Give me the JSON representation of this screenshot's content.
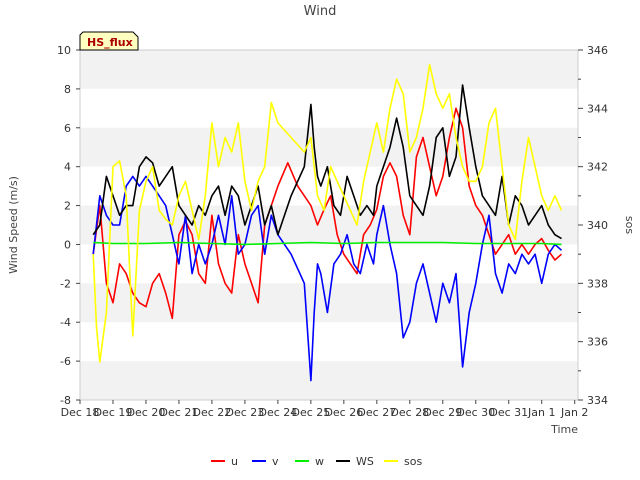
{
  "chart_data": {
    "type": "line",
    "title": "Wind",
    "xlabel": "Time",
    "ylabel": "Wind Speed (m/s)",
    "y2label": "sos",
    "annotation": "HS_flux",
    "xlim": [
      0,
      15.1
    ],
    "ylim": [
      -8,
      10
    ],
    "y2lim": [
      334,
      346
    ],
    "x_ticks": [
      "Dec 18",
      "Dec 19",
      "Dec 20",
      "Dec 21",
      "Dec 22",
      "Dec 23",
      "Dec 24",
      "Dec 25",
      "Dec 26",
      "Dec 27",
      "Dec 28",
      "Dec 29",
      "Dec 30",
      "Dec 31",
      "Jan 1",
      "Jan 2"
    ],
    "y_ticks": [
      -8,
      -6,
      -4,
      -2,
      0,
      2,
      4,
      6,
      8,
      10
    ],
    "y2_ticks": [
      334,
      336,
      338,
      340,
      342,
      344,
      346
    ],
    "grid_bands": true,
    "legend_position": "bottom",
    "x_unit": "days since Dec 18",
    "series": [
      {
        "name": "u",
        "color": "#ff0000",
        "axis": "left",
        "x": [
          0.4,
          0.6,
          0.8,
          1.0,
          1.2,
          1.4,
          1.6,
          1.8,
          2.0,
          2.2,
          2.4,
          2.6,
          2.8,
          3.0,
          3.2,
          3.4,
          3.6,
          3.8,
          4.0,
          4.2,
          4.4,
          4.6,
          4.8,
          5.0,
          5.2,
          5.4,
          5.6,
          5.8,
          6.0,
          6.3,
          6.6,
          7.0,
          7.2,
          7.4,
          7.6,
          7.8,
          8.0,
          8.2,
          8.4,
          8.6,
          8.8,
          9.0,
          9.2,
          9.4,
          9.6,
          9.8,
          10.0,
          10.2,
          10.4,
          10.6,
          10.8,
          11.0,
          11.2,
          11.4,
          11.6,
          11.8,
          12.0,
          12.2,
          12.4,
          12.6,
          12.8,
          13.0,
          13.2,
          13.4,
          13.6,
          13.8,
          14.0,
          14.2,
          14.4,
          14.6
        ],
        "y": [
          -0.5,
          2.0,
          -2.0,
          -3.0,
          -1.0,
          -1.5,
          -2.5,
          -3.0,
          -3.2,
          -2.0,
          -1.5,
          -2.5,
          -3.8,
          0.5,
          1.2,
          0.5,
          -1.5,
          -2.0,
          1.5,
          -1.0,
          -2.0,
          -2.5,
          0.5,
          -1.0,
          -2.0,
          -3.0,
          1.0,
          2.0,
          3.0,
          4.2,
          3.0,
          2.0,
          1.0,
          1.8,
          2.5,
          0.5,
          -0.5,
          -1.0,
          -1.5,
          0.5,
          1.0,
          1.8,
          3.5,
          4.2,
          3.5,
          1.5,
          0.5,
          4.5,
          5.5,
          4.0,
          2.5,
          3.5,
          5.5,
          7.0,
          6.0,
          3.0,
          2.0,
          1.5,
          0.5,
          -0.5,
          0.0,
          0.5,
          -0.5,
          0.0,
          -0.5,
          0.0,
          0.3,
          -0.3,
          -0.8,
          -0.5
        ]
      },
      {
        "name": "v",
        "color": "#0000ff",
        "axis": "left",
        "x": [
          0.4,
          0.6,
          0.8,
          1.0,
          1.2,
          1.4,
          1.6,
          1.8,
          2.0,
          2.2,
          2.4,
          2.6,
          2.8,
          3.0,
          3.2,
          3.4,
          3.6,
          3.8,
          4.0,
          4.2,
          4.4,
          4.6,
          4.8,
          5.0,
          5.2,
          5.4,
          5.6,
          5.8,
          6.0,
          6.4,
          6.8,
          7.0,
          7.1,
          7.2,
          7.3,
          7.5,
          7.7,
          7.9,
          8.1,
          8.3,
          8.5,
          8.7,
          8.9,
          9.0,
          9.2,
          9.4,
          9.6,
          9.8,
          10.0,
          10.2,
          10.4,
          10.6,
          10.8,
          11.0,
          11.2,
          11.4,
          11.6,
          11.8,
          12.0,
          12.2,
          12.4,
          12.6,
          12.8,
          13.0,
          13.2,
          13.4,
          13.6,
          13.8,
          14.0,
          14.2,
          14.4,
          14.6
        ],
        "y": [
          -0.5,
          2.5,
          1.5,
          1.0,
          1.0,
          3.0,
          3.5,
          3.0,
          3.5,
          3.0,
          2.5,
          2.0,
          0.5,
          -1.0,
          1.5,
          -1.5,
          0.0,
          -1.0,
          0.0,
          1.5,
          0.0,
          2.5,
          -0.5,
          0.0,
          1.5,
          2.0,
          -0.5,
          1.5,
          0.5,
          -0.5,
          -2.0,
          -7.0,
          -3.5,
          -1.0,
          -1.5,
          -3.5,
          -1.0,
          -0.5,
          0.5,
          -1.0,
          -1.5,
          0.0,
          -1.0,
          0.5,
          2.0,
          0.0,
          -1.5,
          -4.8,
          -4.0,
          -2.0,
          -1.0,
          -2.5,
          -4.0,
          -2.0,
          -3.0,
          -1.5,
          -6.3,
          -3.5,
          -2.0,
          0.0,
          1.5,
          -1.5,
          -2.5,
          -1.0,
          -1.5,
          -0.5,
          -1.0,
          -0.5,
          -2.0,
          -0.5,
          0.0,
          -0.3
        ]
      },
      {
        "name": "w",
        "color": "#00ee00",
        "axis": "left",
        "x": [
          0.4,
          1.0,
          2.0,
          3.0,
          4.0,
          5.0,
          6.0,
          7.0,
          8.0,
          9.0,
          10.0,
          11.0,
          12.0,
          13.0,
          14.0,
          14.6
        ],
        "y": [
          0.1,
          0.05,
          0.05,
          0.1,
          0.05,
          0.0,
          0.05,
          0.1,
          0.05,
          0.1,
          0.1,
          0.1,
          0.05,
          0.05,
          0.05,
          0.0
        ]
      },
      {
        "name": "WS",
        "color": "#000000",
        "axis": "left",
        "x": [
          0.4,
          0.6,
          0.8,
          1.0,
          1.2,
          1.4,
          1.6,
          1.8,
          2.0,
          2.2,
          2.4,
          2.6,
          2.8,
          3.0,
          3.2,
          3.4,
          3.6,
          3.8,
          4.0,
          4.2,
          4.4,
          4.6,
          4.8,
          5.0,
          5.2,
          5.4,
          5.6,
          5.8,
          6.0,
          6.4,
          6.8,
          7.0,
          7.1,
          7.2,
          7.3,
          7.5,
          7.7,
          7.9,
          8.1,
          8.3,
          8.5,
          8.7,
          8.9,
          9.0,
          9.2,
          9.4,
          9.6,
          9.8,
          10.0,
          10.2,
          10.4,
          10.6,
          10.8,
          11.0,
          11.2,
          11.4,
          11.6,
          11.8,
          12.0,
          12.2,
          12.4,
          12.6,
          12.8,
          13.0,
          13.2,
          13.4,
          13.6,
          13.8,
          14.0,
          14.2,
          14.4,
          14.6
        ],
        "y": [
          0.5,
          1.0,
          3.5,
          2.5,
          1.5,
          2.0,
          2.0,
          4.0,
          4.5,
          4.2,
          3.0,
          3.5,
          4.0,
          2.0,
          1.5,
          1.0,
          2.0,
          1.5,
          2.5,
          3.0,
          1.5,
          3.0,
          2.5,
          1.0,
          2.0,
          3.0,
          1.0,
          2.0,
          0.5,
          2.5,
          4.0,
          7.2,
          5.0,
          3.5,
          3.0,
          4.0,
          2.0,
          1.5,
          3.5,
          2.5,
          1.5,
          2.0,
          1.5,
          3.0,
          4.0,
          5.0,
          6.5,
          5.0,
          2.5,
          2.0,
          1.5,
          3.0,
          5.5,
          6.0,
          3.5,
          4.5,
          8.2,
          6.0,
          4.0,
          2.5,
          2.0,
          1.5,
          3.5,
          1.0,
          2.5,
          2.0,
          1.0,
          1.5,
          2.0,
          1.0,
          0.5,
          0.3
        ]
      },
      {
        "name": "sos",
        "color": "#ffff00",
        "axis": "right",
        "x": [
          0.4,
          0.5,
          0.6,
          0.8,
          1.0,
          1.2,
          1.4,
          1.6,
          1.8,
          2.0,
          2.2,
          2.4,
          2.6,
          2.8,
          3.0,
          3.2,
          3.4,
          3.6,
          3.8,
          4.0,
          4.2,
          4.4,
          4.6,
          4.8,
          5.0,
          5.2,
          5.4,
          5.6,
          5.8,
          6.0,
          6.4,
          6.8,
          7.0,
          7.2,
          7.4,
          7.6,
          7.8,
          8.0,
          8.2,
          8.4,
          8.6,
          8.8,
          9.0,
          9.2,
          9.4,
          9.6,
          9.8,
          10.0,
          10.2,
          10.4,
          10.6,
          10.8,
          11.0,
          11.2,
          11.4,
          11.6,
          11.8,
          12.0,
          12.2,
          12.4,
          12.6,
          12.8,
          13.0,
          13.2,
          13.4,
          13.6,
          13.8,
          14.0,
          14.2,
          14.4,
          14.6
        ],
        "y": [
          339.0,
          336.5,
          335.3,
          337.0,
          342.0,
          342.2,
          341.0,
          336.2,
          340.5,
          341.5,
          342.0,
          340.5,
          340.2,
          340.0,
          341.0,
          341.5,
          340.5,
          339.5,
          341.0,
          343.5,
          342.0,
          343.0,
          342.5,
          343.5,
          341.5,
          340.5,
          341.5,
          342.0,
          344.2,
          343.5,
          343.0,
          342.5,
          343.0,
          341.0,
          340.5,
          342.0,
          341.5,
          341.0,
          340.5,
          340.0,
          341.5,
          342.5,
          343.5,
          342.5,
          344.0,
          345.0,
          344.5,
          342.5,
          343.0,
          344.0,
          345.5,
          344.5,
          344.0,
          344.5,
          343.0,
          342.0,
          341.5,
          341.5,
          342.0,
          343.5,
          344.0,
          342.0,
          340.0,
          339.5,
          341.5,
          343.0,
          342.0,
          341.0,
          340.5,
          341.0,
          340.5
        ]
      }
    ]
  }
}
